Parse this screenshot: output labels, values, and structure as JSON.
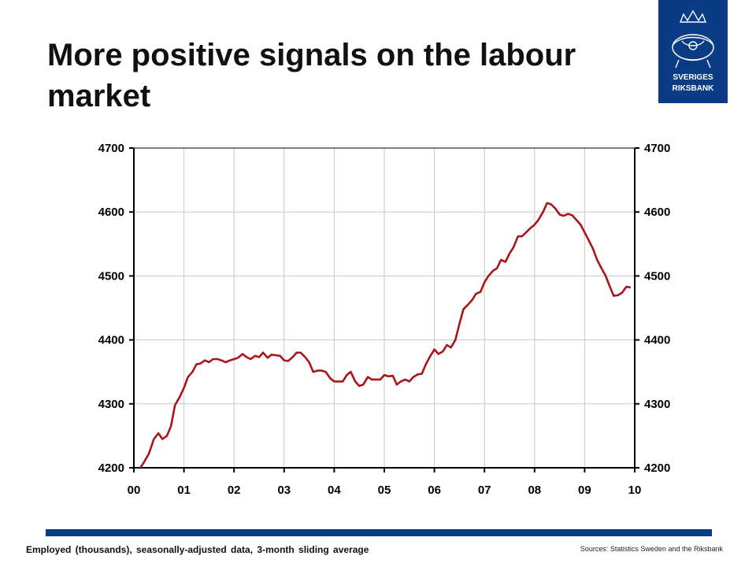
{
  "slide": {
    "title": "More positive signals on the labour market",
    "footnote": "Employed (thousands), seasonally-adjusted data, 3-month sliding average",
    "source": "Sources: Statistics Sweden and the Riksbank"
  },
  "logo": {
    "line1": "SVERIGES",
    "line2": "RIKSBANK",
    "icon": "riksbank-crest-icon",
    "color": "#0a3c86"
  },
  "colors": {
    "series": "#a8151b",
    "brand": "#0a3c86",
    "grid": "#c8c8c8"
  },
  "chart_data": {
    "type": "line",
    "xlabel": "",
    "ylabel": "",
    "xlim": [
      0,
      10
    ],
    "ylim": [
      4200,
      4700
    ],
    "x_ticks": [
      "00",
      "01",
      "02",
      "03",
      "04",
      "05",
      "06",
      "07",
      "08",
      "09",
      "10"
    ],
    "y_ticks": [
      4200,
      4300,
      4400,
      4500,
      4600,
      4700
    ],
    "grid": true,
    "legend": "none",
    "series": [
      {
        "color": "#a8151b",
        "x": [
          0.13,
          0.21,
          0.3,
          0.4,
          0.49,
          0.57,
          0.66,
          0.74,
          0.82,
          0.91,
          1.0,
          1.08,
          1.17,
          1.25,
          1.33,
          1.42,
          1.5,
          1.58,
          1.67,
          1.75,
          1.83,
          1.92,
          2.0,
          2.08,
          2.17,
          2.25,
          2.33,
          2.42,
          2.5,
          2.58,
          2.67,
          2.75,
          2.83,
          2.92,
          3.0,
          3.08,
          3.17,
          3.25,
          3.33,
          3.42,
          3.5,
          3.58,
          3.67,
          3.75,
          3.83,
          3.92,
          4.0,
          4.08,
          4.17,
          4.25,
          4.33,
          4.42,
          4.5,
          4.58,
          4.67,
          4.75,
          4.83,
          4.92,
          5.0,
          5.08,
          5.17,
          5.25,
          5.33,
          5.42,
          5.5,
          5.58,
          5.67,
          5.75,
          5.83,
          5.92,
          6.0,
          6.08,
          6.17,
          6.25,
          6.33,
          6.42,
          6.5,
          6.58,
          6.67,
          6.75,
          6.83,
          6.92,
          7.0,
          7.08,
          7.17,
          7.25,
          7.33,
          7.42,
          7.5,
          7.58,
          7.67,
          7.75,
          7.83,
          7.92,
          8.0,
          8.08,
          8.17,
          8.25,
          8.33,
          8.42,
          8.5,
          8.58,
          8.67,
          8.75,
          8.83,
          8.92,
          9.0,
          9.08,
          9.17,
          9.25,
          9.33,
          9.42,
          9.5,
          9.58,
          9.67,
          9.75,
          9.83,
          9.92
        ],
        "values": [
          4200,
          4210,
          4222,
          4245,
          4254,
          4245,
          4250,
          4265,
          4298,
          4310,
          4325,
          4342,
          4350,
          4362,
          4363,
          4368,
          4365,
          4370,
          4370,
          4368,
          4365,
          4368,
          4370,
          4372,
          4378,
          4373,
          4370,
          4375,
          4373,
          4380,
          4372,
          4377,
          4376,
          4375,
          4368,
          4367,
          4373,
          4380,
          4380,
          4373,
          4365,
          4350,
          4352,
          4352,
          4350,
          4340,
          4335,
          4335,
          4335,
          4345,
          4350,
          4335,
          4328,
          4330,
          4342,
          4338,
          4338,
          4338,
          4345,
          4343,
          4344,
          4330,
          4335,
          4338,
          4335,
          4342,
          4346,
          4347,
          4362,
          4375,
          4385,
          4378,
          4382,
          4392,
          4388,
          4400,
          4425,
          4448,
          4455,
          4462,
          4472,
          4475,
          4490,
          4500,
          4508,
          4512,
          4525,
          4522,
          4535,
          4545,
          4562,
          4562,
          4568,
          4575,
          4580,
          4588,
          4600,
          4614,
          4612,
          4605,
          4596,
          4594,
          4597,
          4595,
          4588,
          4580,
          4568,
          4556,
          4542,
          4525,
          4513,
          4500,
          4484,
          4469,
          4470,
          4474,
          4483,
          4482
        ]
      }
    ]
  }
}
